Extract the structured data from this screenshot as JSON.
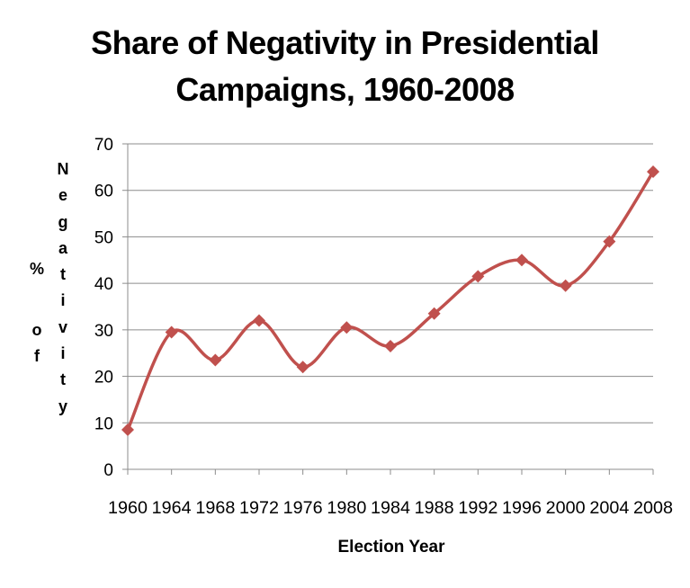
{
  "chart_data": {
    "type": "line",
    "title": "Share of Negativity in Presidential Campaigns, 1960-2008",
    "title_lines": [
      "Share of Negativity in Presidential",
      "Campaigns, 1960-2008"
    ],
    "xlabel": "Election Year",
    "ylabel": "% of Negativity",
    "ylabel_columns": [
      [
        "%"
      ],
      [
        "o",
        "f"
      ],
      [
        "N",
        "e",
        "g",
        "a",
        "t",
        "i",
        "v",
        "i",
        "t",
        "y"
      ]
    ],
    "categories": [
      "1960",
      "1964",
      "1968",
      "1972",
      "1976",
      "1980",
      "1984",
      "1988",
      "1992",
      "1996",
      "2000",
      "2004",
      "2008"
    ],
    "series": [
      {
        "values": [
          8.5,
          29.5,
          23.5,
          32,
          22,
          30.5,
          26.5,
          33.5,
          41.5,
          45,
          39.5,
          49,
          64
        ]
      }
    ],
    "ylim": [
      0,
      70
    ],
    "yticks": [
      0,
      10,
      20,
      30,
      40,
      50,
      60,
      70
    ],
    "grid": true,
    "legend": "none",
    "line_color": "#C0504D",
    "grid_color": "#8C8C8C"
  }
}
